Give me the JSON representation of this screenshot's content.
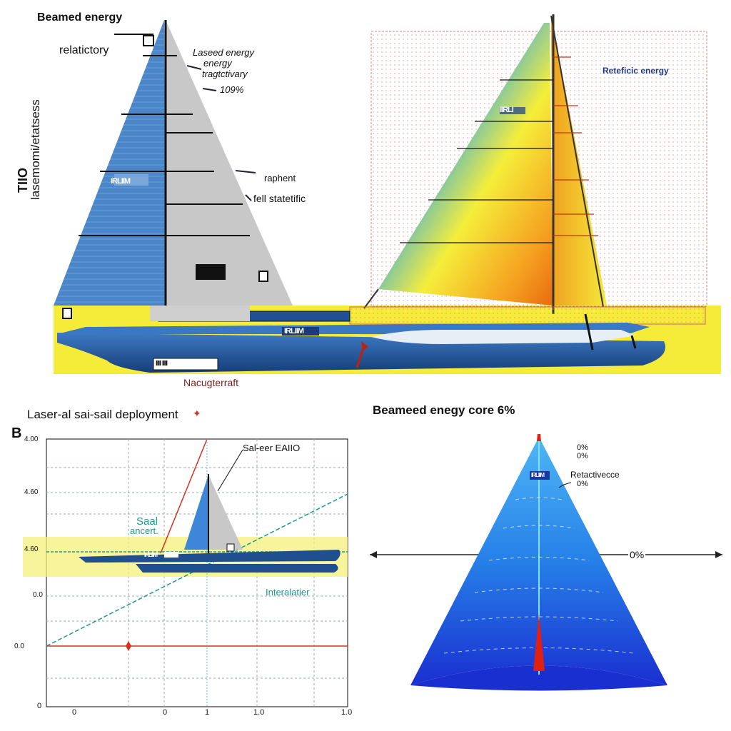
{
  "top": {
    "label_beamed": "Beamed energy",
    "label_relativistic": "relatictory",
    "label_laser_1": "Laseed energy",
    "label_laser_2": "energy",
    "label_laser_3": "tragtctivary",
    "label_laser_4": "109%",
    "label_raphent": "raphent",
    "label_fell": "fell statetific",
    "label_vertical_1": "TIIO",
    "label_vertical_2": "lasemomi/etatsess",
    "label_nacug": "Nacugterraft",
    "label_reteficic": "Reteficic energy",
    "hull_tag_left": "IRLIIM",
    "sail_tag_left": "IRLIIM",
    "sail_tag_right": "IIRLI",
    "hull_tag_strip": "IIII IIII"
  },
  "bottom_left": {
    "panel_letter": "B",
    "title": "Laser-al sai-sail deployment",
    "label_sail_anchor_1": "Saal",
    "label_sail_anchor_2": "ancert.",
    "label_interal": "Interalatier",
    "label_eail": "Sal-eer EAIIO",
    "hull_tag": "IRLIIM",
    "y_ticks": [
      "4.00",
      "4.60",
      "4.60",
      "0.0",
      "0.0"
    ],
    "y_tick_bottom": "0",
    "x_ticks": [
      "0",
      "0",
      "1",
      "1.0",
      "1.0"
    ]
  },
  "bottom_right": {
    "title": "Beameed enegy core 6%",
    "label_pct_1": "0%",
    "label_pct_2": "0%",
    "label_retacticc": "Retactivecce",
    "label_pct_3": "0%",
    "label_axis_pct": "0%",
    "cone_tag": "IRLIIM"
  },
  "colors": {
    "sail_blue": "#4a86c8",
    "sail_grey": "#c9c9c9",
    "hull_dark": "#1f4f8f",
    "deck_yellow": "#f5ec3a",
    "grid_red": "#e06060",
    "cone_blue": "#1f5fe0",
    "accent_red": "#d83020",
    "teal": "#1a9a8a"
  }
}
